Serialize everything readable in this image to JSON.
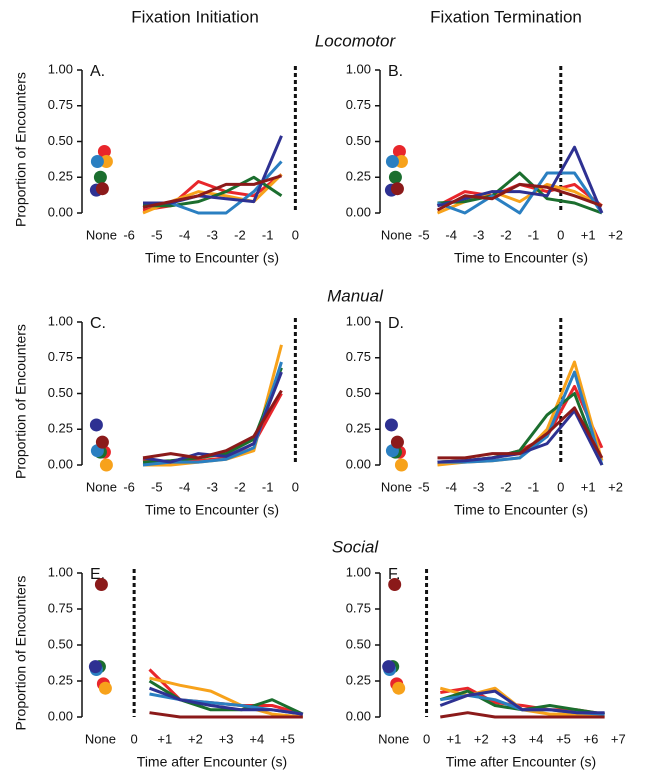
{
  "column_titles": [
    "Fixation Initiation",
    "Fixation Termination"
  ],
  "section_titles": [
    "Locomotor",
    "Manual",
    "Social"
  ],
  "chart_data": [
    {
      "type": "line",
      "panel_label": "A.",
      "ylabel": "Proportion of Encounters",
      "xlabel": "Time to Encounter (s)",
      "xlim": [
        -7.7,
        0.6
      ],
      "xticks": [
        {
          "value": -7,
          "label": "None"
        },
        -6,
        -5,
        -4,
        -3,
        -2,
        -1,
        0
      ],
      "ylim": [
        0,
        1
      ],
      "yticks": [
        {
          "value": 0,
          "label": "0.00"
        },
        {
          "value": 0.25,
          "label": "0.25"
        },
        {
          "value": 0.5,
          "label": "0.50"
        },
        {
          "value": 0.75,
          "label": "0.75"
        },
        {
          "value": 1,
          "label": "1.00"
        }
      ],
      "vline": 0,
      "x": [
        -5.5,
        -4.5,
        -3.5,
        -2.5,
        -1.5,
        -0.5
      ],
      "series": [
        {
          "color": "#e8262b",
          "none_value": 0.43,
          "values": [
            0.02,
            0.05,
            0.22,
            0.15,
            0.12,
            0.27
          ]
        },
        {
          "color": "#f7a21b",
          "none_value": 0.36,
          "values": [
            0.0,
            0.08,
            0.15,
            0.12,
            0.08,
            0.27
          ]
        },
        {
          "color": "#1b6e2e",
          "none_value": 0.25,
          "values": [
            0.05,
            0.05,
            0.08,
            0.15,
            0.25,
            0.12
          ]
        },
        {
          "color": "#2a7fc1",
          "none_value": 0.36,
          "values": [
            0.07,
            0.07,
            0.0,
            0.0,
            0.15,
            0.36
          ]
        },
        {
          "color": "#2e3192",
          "none_value": 0.16,
          "values": [
            0.07,
            0.07,
            0.12,
            0.1,
            0.08,
            0.54
          ]
        },
        {
          "color": "#8b1a1a",
          "none_value": 0.17,
          "values": [
            0.04,
            0.08,
            0.12,
            0.2,
            0.2,
            0.26
          ]
        }
      ]
    },
    {
      "type": "line",
      "panel_label": "B.",
      "xlabel": "Time to Encounter (s)",
      "xlim": [
        -6.6,
        2.6
      ],
      "xticks": [
        {
          "value": -6,
          "label": "None"
        },
        -5,
        -4,
        -3,
        -2,
        -1,
        0,
        {
          "value": 1,
          "label": "+1"
        },
        {
          "value": 2,
          "label": "+2"
        }
      ],
      "ylim": [
        0,
        1
      ],
      "yticks": [
        {
          "value": 0,
          "label": "0.00"
        },
        {
          "value": 0.25,
          "label": "0.25"
        },
        {
          "value": 0.5,
          "label": "0.50"
        },
        {
          "value": 0.75,
          "label": "0.75"
        },
        {
          "value": 1,
          "label": "1.00"
        }
      ],
      "vline": 0,
      "x": [
        -4.5,
        -3.5,
        -2.5,
        -1.5,
        -0.5,
        0.5,
        1.5
      ],
      "series": [
        {
          "color": "#e8262b",
          "none_value": 0.43,
          "values": [
            0.05,
            0.15,
            0.12,
            0.2,
            0.15,
            0.2,
            0.05
          ]
        },
        {
          "color": "#f7a21b",
          "none_value": 0.36,
          "values": [
            0.0,
            0.08,
            0.15,
            0.08,
            0.2,
            0.15,
            0.05
          ]
        },
        {
          "color": "#1b6e2e",
          "none_value": 0.25,
          "values": [
            0.07,
            0.08,
            0.12,
            0.28,
            0.1,
            0.07,
            0.0
          ]
        },
        {
          "color": "#2a7fc1",
          "none_value": 0.36,
          "values": [
            0.07,
            0.0,
            0.12,
            0.0,
            0.28,
            0.28,
            0.0
          ]
        },
        {
          "color": "#2e3192",
          "none_value": 0.16,
          "values": [
            0.05,
            0.1,
            0.15,
            0.15,
            0.12,
            0.46,
            0.0
          ]
        },
        {
          "color": "#8b1a1a",
          "none_value": 0.17,
          "values": [
            0.02,
            0.12,
            0.1,
            0.2,
            0.18,
            0.12,
            0.05
          ]
        }
      ]
    },
    {
      "type": "line",
      "panel_label": "C.",
      "ylabel": "Proportion of Encounters",
      "xlabel": "Time to Encounter (s)",
      "xlim": [
        -7.7,
        0.6
      ],
      "xticks": [
        {
          "value": -7,
          "label": "None"
        },
        -6,
        -5,
        -4,
        -3,
        -2,
        -1,
        0
      ],
      "ylim": [
        0,
        1
      ],
      "yticks": [
        {
          "value": 0,
          "label": "0.00"
        },
        {
          "value": 0.25,
          "label": "0.25"
        },
        {
          "value": 0.5,
          "label": "0.50"
        },
        {
          "value": 0.75,
          "label": "0.75"
        },
        {
          "value": 1,
          "label": "1.00"
        }
      ],
      "vline": 0,
      "x": [
        -5.5,
        -4.5,
        -3.5,
        -2.5,
        -1.5,
        -0.5
      ],
      "series": [
        {
          "color": "#e8262b",
          "none_value": 0.09,
          "values": [
            0.04,
            0.02,
            0.03,
            0.05,
            0.15,
            0.5
          ]
        },
        {
          "color": "#f7a21b",
          "none_value": 0.0,
          "values": [
            0.0,
            0.0,
            0.02,
            0.04,
            0.1,
            0.84
          ]
        },
        {
          "color": "#1b6e2e",
          "none_value": 0.09,
          "values": [
            0.02,
            0.03,
            0.05,
            0.08,
            0.18,
            0.68
          ]
        },
        {
          "color": "#2a7fc1",
          "none_value": 0.1,
          "values": [
            0.0,
            0.02,
            0.02,
            0.04,
            0.12,
            0.72
          ]
        },
        {
          "color": "#2e3192",
          "none_value": 0.28,
          "values": [
            0.05,
            0.02,
            0.08,
            0.06,
            0.15,
            0.65
          ]
        },
        {
          "color": "#8b1a1a",
          "none_value": 0.16,
          "values": [
            0.05,
            0.08,
            0.05,
            0.1,
            0.2,
            0.52
          ]
        }
      ]
    },
    {
      "type": "line",
      "panel_label": "D.",
      "xlabel": "Time to Encounter (s)",
      "xlim": [
        -6.6,
        2.6
      ],
      "xticks": [
        {
          "value": -6,
          "label": "None"
        },
        -5,
        -4,
        -3,
        -2,
        -1,
        0,
        {
          "value": 1,
          "label": "+1"
        },
        {
          "value": 2,
          "label": "+2"
        }
      ],
      "ylim": [
        0,
        1
      ],
      "yticks": [
        {
          "value": 0,
          "label": "0.00"
        },
        {
          "value": 0.25,
          "label": "0.25"
        },
        {
          "value": 0.5,
          "label": "0.50"
        },
        {
          "value": 0.75,
          "label": "0.75"
        },
        {
          "value": 1,
          "label": "1.00"
        }
      ],
      "vline": 0,
      "x": [
        -4.5,
        -3.5,
        -2.5,
        -1.5,
        -0.5,
        0.5,
        1.5
      ],
      "series": [
        {
          "color": "#e8262b",
          "none_value": 0.09,
          "values": [
            0.02,
            0.03,
            0.05,
            0.1,
            0.2,
            0.55,
            0.12
          ]
        },
        {
          "color": "#f7a21b",
          "none_value": 0.0,
          "values": [
            0.0,
            0.02,
            0.03,
            0.05,
            0.25,
            0.72,
            0.03
          ]
        },
        {
          "color": "#1b6e2e",
          "none_value": 0.09,
          "values": [
            0.02,
            0.03,
            0.05,
            0.1,
            0.35,
            0.5,
            0.0
          ]
        },
        {
          "color": "#2a7fc1",
          "none_value": 0.1,
          "values": [
            0.02,
            0.02,
            0.03,
            0.05,
            0.2,
            0.65,
            0.0
          ]
        },
        {
          "color": "#2e3192",
          "none_value": 0.28,
          "values": [
            0.02,
            0.03,
            0.05,
            0.08,
            0.15,
            0.38,
            0.0
          ]
        },
        {
          "color": "#8b1a1a",
          "none_value": 0.16,
          "values": [
            0.05,
            0.05,
            0.08,
            0.08,
            0.22,
            0.4,
            0.05
          ]
        }
      ]
    },
    {
      "type": "line",
      "panel_label": "E.",
      "ylabel": "Proportion of Encounters",
      "xlabel": "Time after Encounter (s)",
      "xlim": [
        -1.7,
        5.8
      ],
      "xticks": [
        {
          "value": -1.1,
          "label": "None"
        },
        0,
        {
          "value": 1,
          "label": "+1"
        },
        {
          "value": 2,
          "label": "+2"
        },
        {
          "value": 3,
          "label": "+3"
        },
        {
          "value": 4,
          "label": "+4"
        },
        {
          "value": 5,
          "label": "+5"
        }
      ],
      "ylim": [
        0,
        1
      ],
      "yticks": [
        {
          "value": 0,
          "label": "0.00"
        },
        {
          "value": 0.25,
          "label": "0.25"
        },
        {
          "value": 0.5,
          "label": "0.50"
        },
        {
          "value": 0.75,
          "label": "0.75"
        },
        {
          "value": 1,
          "label": "1.00"
        }
      ],
      "vline": 0,
      "x": [
        0.5,
        1.5,
        2.5,
        3.5,
        4.5,
        5.5
      ],
      "series": [
        {
          "color": "#e8262b",
          "none_value": 0.23,
          "values": [
            0.33,
            0.12,
            0.1,
            0.08,
            0.08,
            0.02
          ]
        },
        {
          "color": "#f7a21b",
          "none_value": 0.2,
          "values": [
            0.27,
            0.22,
            0.18,
            0.08,
            0.02,
            0.0
          ]
        },
        {
          "color": "#1b6e2e",
          "none_value": 0.35,
          "values": [
            0.25,
            0.12,
            0.05,
            0.05,
            0.12,
            0.02
          ]
        },
        {
          "color": "#2a7fc1",
          "none_value": 0.33,
          "values": [
            0.16,
            0.12,
            0.1,
            0.08,
            0.05,
            0.02
          ]
        },
        {
          "color": "#2e3192",
          "none_value": 0.35,
          "values": [
            0.2,
            0.12,
            0.08,
            0.05,
            0.05,
            0.02
          ]
        },
        {
          "color": "#8b1a1a",
          "none_value": 0.92,
          "values": [
            0.03,
            0.0,
            0.0,
            0.0,
            0.0,
            0.0
          ]
        }
      ]
    },
    {
      "type": "line",
      "panel_label": "F.",
      "xlabel": "Time after Encounter (s)",
      "xlim": [
        -1.7,
        7.5
      ],
      "xticks": [
        {
          "value": -1.2,
          "label": "None"
        },
        0,
        {
          "value": 1,
          "label": "+1"
        },
        {
          "value": 2,
          "label": "+2"
        },
        {
          "value": 3,
          "label": "+3"
        },
        {
          "value": 4,
          "label": "+4"
        },
        {
          "value": 5,
          "label": "+5"
        },
        {
          "value": 6,
          "label": "+6"
        },
        {
          "value": 7,
          "label": "+7"
        }
      ],
      "ylim": [
        0,
        1
      ],
      "yticks": [
        {
          "value": 0,
          "label": "0.00"
        },
        {
          "value": 0.25,
          "label": "0.25"
        },
        {
          "value": 0.5,
          "label": "0.50"
        },
        {
          "value": 0.75,
          "label": "0.75"
        },
        {
          "value": 1,
          "label": "1.00"
        }
      ],
      "vline": 0,
      "x": [
        0.5,
        1.5,
        2.5,
        3.5,
        4.5,
        5.5,
        6.5
      ],
      "series": [
        {
          "color": "#e8262b",
          "none_value": 0.23,
          "values": [
            0.17,
            0.2,
            0.1,
            0.08,
            0.05,
            0.05,
            0.02
          ]
        },
        {
          "color": "#f7a21b",
          "none_value": 0.2,
          "values": [
            0.2,
            0.15,
            0.2,
            0.05,
            0.02,
            0.02,
            0.0
          ]
        },
        {
          "color": "#1b6e2e",
          "none_value": 0.35,
          "values": [
            0.12,
            0.18,
            0.08,
            0.05,
            0.08,
            0.05,
            0.02
          ]
        },
        {
          "color": "#2a7fc1",
          "none_value": 0.33,
          "values": [
            0.12,
            0.15,
            0.12,
            0.05,
            0.05,
            0.03,
            0.02
          ]
        },
        {
          "color": "#2e3192",
          "none_value": 0.35,
          "values": [
            0.08,
            0.15,
            0.18,
            0.05,
            0.05,
            0.03,
            0.03
          ]
        },
        {
          "color": "#8b1a1a",
          "none_value": 0.92,
          "values": [
            0.0,
            0.03,
            0.0,
            0.0,
            0.0,
            0.0,
            0.0
          ]
        }
      ]
    }
  ]
}
